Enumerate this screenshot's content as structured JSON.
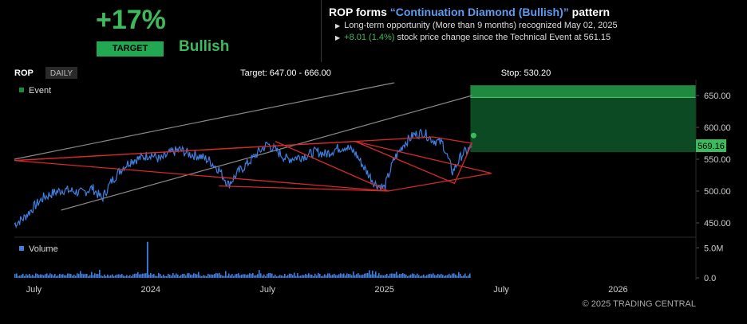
{
  "header": {
    "percent": "+17%",
    "target_label": "TARGET",
    "sentiment": "Bullish",
    "title_prefix": "ROP forms ",
    "title_pattern": "“Continuation Diamond (Bullish)”",
    "title_suffix": " pattern",
    "bullet1": "Long-term opportunity (More than 9 months) recognized May 02, 2025",
    "bullet2_change": "+8.01 (1.4%)",
    "bullet2_rest": " stock price change since the Technical Event at 561.15"
  },
  "toolbar": {
    "symbol": "ROP",
    "interval": "DAILY",
    "target_text": "Target: 647.00 - 666.00",
    "stop_text": "Stop: 530.20"
  },
  "legend": {
    "event": "Event",
    "volume": "Volume"
  },
  "current_price": "569.16",
  "copyright": "© 2025 TRADING CENTRAL",
  "colors": {
    "price_line": "#3f7fe0",
    "pattern": "#d32a2a",
    "channel": "#8a8a8a",
    "target_zone": "#0b4a22",
    "target_top": "#1f8a3f",
    "accent_green": "#3dba5e"
  },
  "chart_data": {
    "type": "line",
    "title": "ROP forms Continuation Diamond (Bullish) pattern",
    "ylim": [
      430,
      675
    ],
    "y_ticks": [
      450,
      500,
      550,
      600,
      650
    ],
    "y_tick_labels": [
      "450.00",
      "500.00",
      "550.00",
      "600.00",
      "650.00"
    ],
    "x_tick_labels": [
      "July",
      "2024",
      "July",
      "2025",
      "July",
      "2026"
    ],
    "x_tick_months": [
      1.0,
      7.0,
      13.0,
      19.0,
      25.0,
      31.0
    ],
    "x_range_months": [
      0,
      35
    ],
    "price": {
      "x_months": [
        0,
        0.5,
        1,
        1.5,
        2,
        2.5,
        3,
        3.5,
        4,
        4.5,
        5,
        5.5,
        6,
        6.5,
        7,
        7.5,
        8,
        8.5,
        9,
        9.5,
        10,
        10.5,
        11,
        11.5,
        12,
        12.5,
        13,
        13.5,
        14,
        14.5,
        15,
        15.5,
        16,
        16.5,
        17,
        17.5,
        18,
        18.5,
        19,
        19.5,
        20,
        20.5,
        21,
        21.5,
        22,
        22.5,
        23,
        23.5
      ],
      "values": [
        448,
        458,
        475,
        490,
        497,
        502,
        500,
        497,
        505,
        488,
        516,
        535,
        548,
        552,
        558,
        549,
        560,
        565,
        558,
        555,
        548,
        534,
        510,
        530,
        544,
        560,
        574,
        562,
        550,
        553,
        556,
        562,
        558,
        566,
        570,
        560,
        535,
        512,
        505,
        550,
        574,
        588,
        592,
        580,
        575,
        530,
        558,
        569
      ]
    },
    "target_range": [
      647,
      666
    ],
    "stop": 530.2,
    "event_price": 561.15,
    "current": 569.16,
    "diamond": {
      "left": [
        0,
        548
      ],
      "top": [
        17.5,
        578
      ],
      "bottom": [
        19.2,
        500
      ],
      "right": [
        24.5,
        528
      ]
    },
    "secondary_diamond": {
      "left": [
        17.5,
        578
      ],
      "top": [
        21.5,
        585
      ],
      "bottom": [
        22.6,
        512
      ],
      "right": [
        23.5,
        575
      ]
    },
    "channel_upper": [
      [
        0,
        550
      ],
      [
        19.5,
        670
      ]
    ],
    "channel_lower": [
      [
        2.4,
        470
      ],
      [
        23.5,
        650
      ]
    ],
    "volume_ylim": [
      0,
      6.5
    ],
    "volume_ticks": [
      0,
      5
    ],
    "volume_tick_labels": [
      "0.0",
      "5.0M"
    ],
    "volume_spike": {
      "x_month": 6.8,
      "value": 6.0
    }
  }
}
